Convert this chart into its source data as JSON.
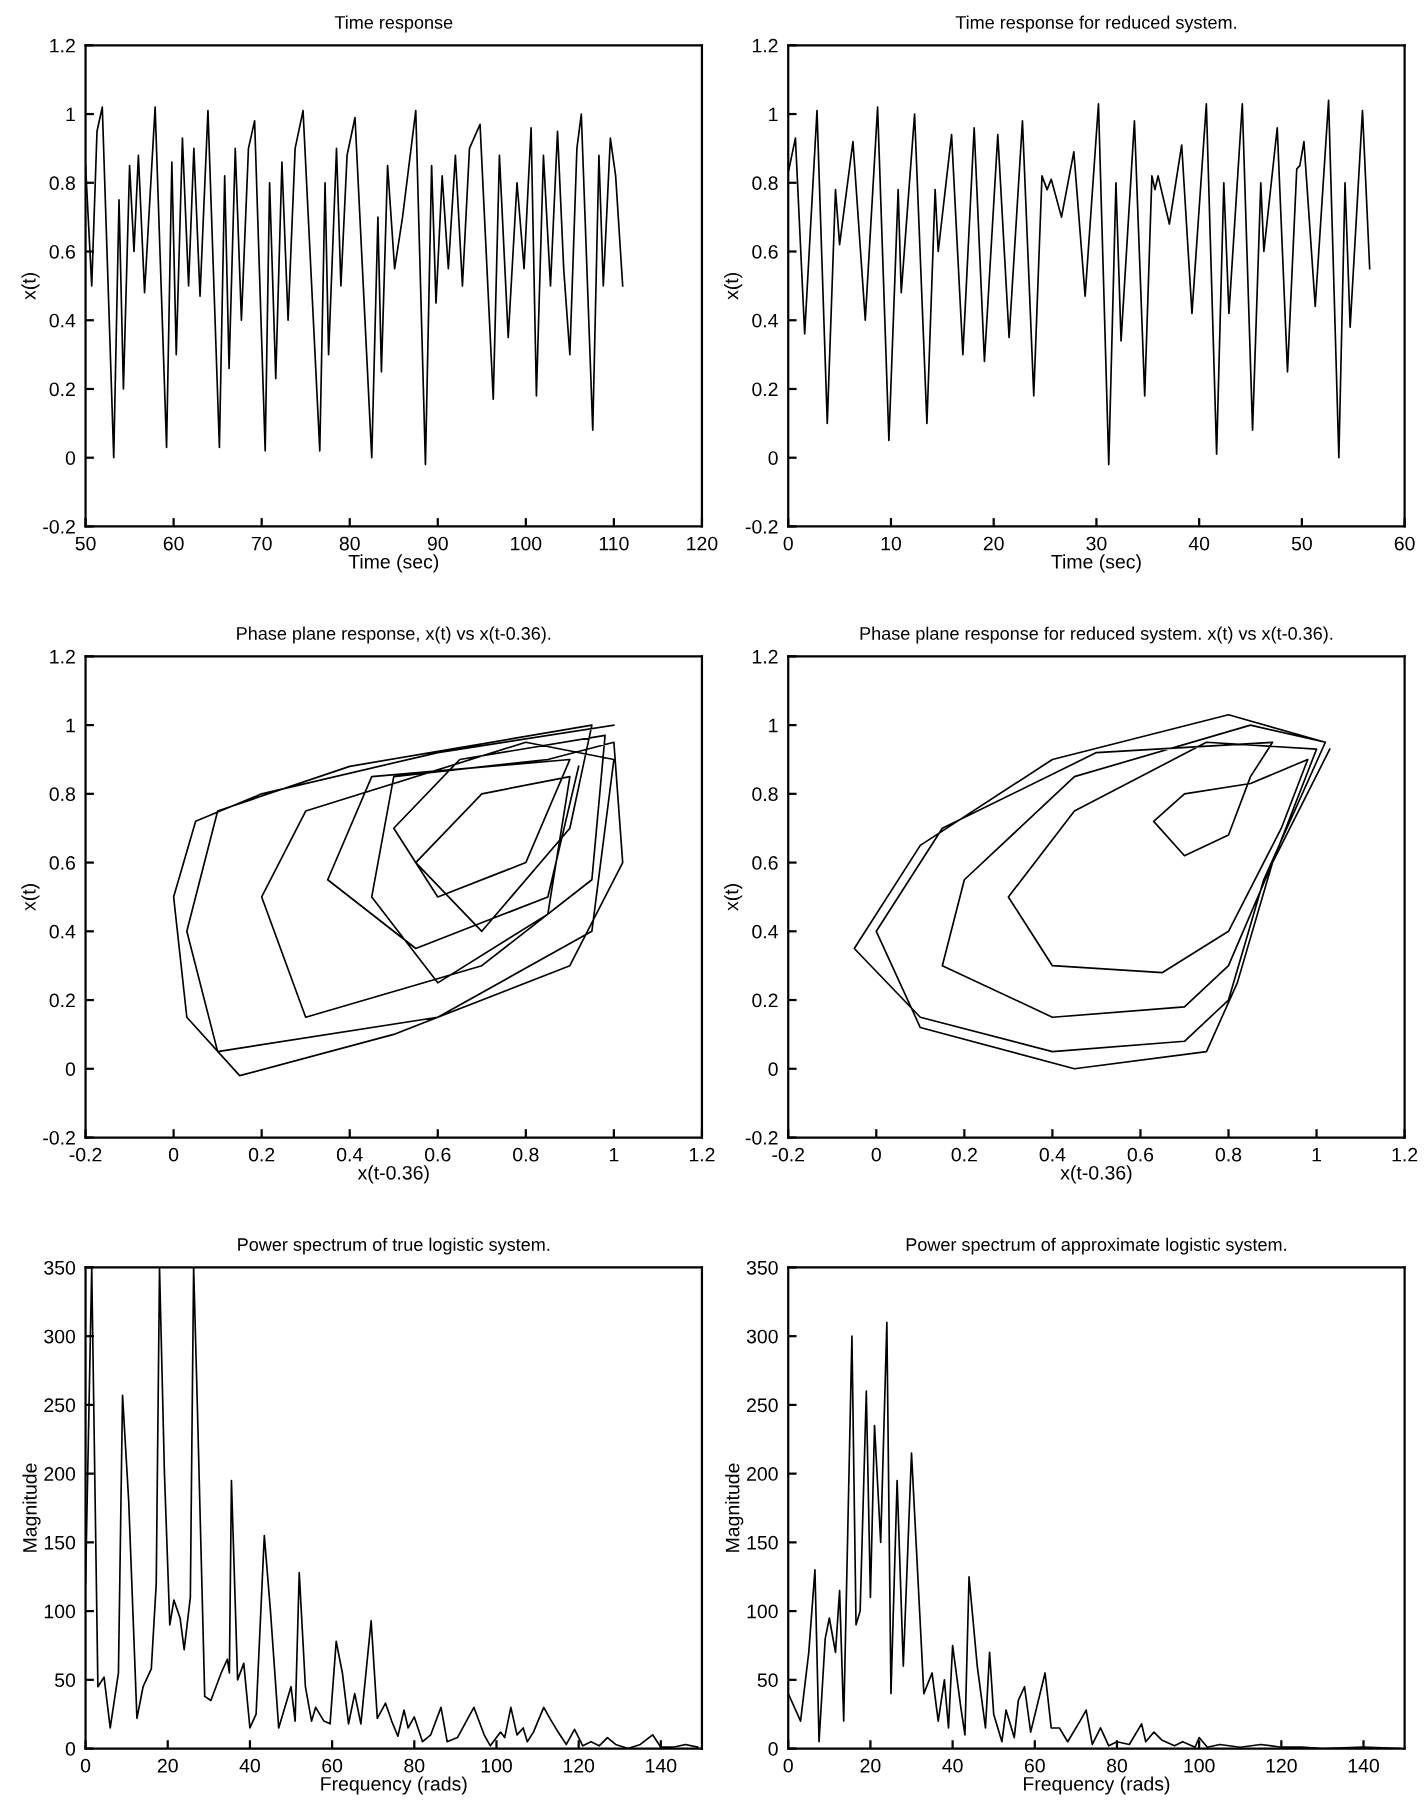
{
  "chart_data": [
    {
      "type": "line",
      "title": "Time response",
      "xlabel": "Time (sec)",
      "ylabel": "x(t)",
      "xlim": [
        50,
        120
      ],
      "xticks": [
        50,
        60,
        70,
        80,
        90,
        100,
        110,
        120
      ],
      "ylim": [
        -0.2,
        1.2
      ],
      "yticks": [
        -0.2,
        0,
        0.2,
        0.4,
        0.6,
        0.8,
        1,
        1.2
      ],
      "grid": false,
      "legend": false,
      "marker": "none",
      "line_style": "solid",
      "series": [
        {
          "color": "#000000",
          "x": [
            50,
            50.7,
            51.3,
            51.9,
            53.2,
            53.8,
            54.3,
            55,
            55.5,
            56,
            56.7,
            57.9,
            59.2,
            59.8,
            60.3,
            61,
            61.7,
            62.3,
            63,
            63.9,
            65.2,
            65.8,
            66.3,
            67,
            67.7,
            68.5,
            69.2,
            70.4,
            70.9,
            71.6,
            72.3,
            73,
            73.8,
            74.7,
            76.6,
            77.2,
            77.6,
            78.5,
            79,
            79.7,
            80.6,
            82.5,
            83.2,
            83.6,
            84.3,
            85.1,
            86,
            87.5,
            88.6,
            89.3,
            89.8,
            90.5,
            91.2,
            92,
            92.8,
            93.6,
            94.8,
            96.3,
            97,
            98,
            99,
            99.8,
            100.6,
            101.2,
            102,
            102.8,
            103.6,
            104.3,
            105,
            105.8,
            106.3,
            107.6,
            108.3,
            108.8,
            109.6,
            110.2,
            111
          ],
          "values": [
            0.85,
            0.5,
            0.95,
            1.02,
            0.0,
            0.75,
            0.2,
            0.85,
            0.6,
            0.88,
            0.48,
            1.02,
            0.03,
            0.86,
            0.3,
            0.93,
            0.5,
            0.9,
            0.47,
            1.01,
            0.03,
            0.82,
            0.26,
            0.9,
            0.4,
            0.9,
            0.98,
            0.02,
            0.8,
            0.23,
            0.86,
            0.4,
            0.9,
            1.01,
            0.02,
            0.8,
            0.3,
            0.9,
            0.5,
            0.88,
            0.99,
            0.0,
            0.7,
            0.25,
            0.85,
            0.55,
            0.7,
            1.01,
            -0.02,
            0.85,
            0.45,
            0.82,
            0.55,
            0.88,
            0.5,
            0.9,
            0.97,
            0.17,
            0.88,
            0.35,
            0.8,
            0.55,
            0.96,
            0.18,
            0.88,
            0.5,
            0.95,
            0.55,
            0.3,
            0.9,
            1.0,
            0.08,
            0.88,
            0.5,
            0.93,
            0.82,
            0.5
          ]
        }
      ]
    },
    {
      "type": "line",
      "title": "Time response for reduced system.",
      "xlabel": "Time (sec)",
      "ylabel": "x(t)",
      "xlim": [
        0,
        60
      ],
      "xticks": [
        0,
        10,
        20,
        30,
        40,
        50,
        60
      ],
      "ylim": [
        -0.2,
        1.2
      ],
      "yticks": [
        -0.2,
        0,
        0.2,
        0.4,
        0.6,
        0.8,
        1,
        1.2
      ],
      "grid": false,
      "legend": false,
      "marker": "none",
      "line_style": "solid",
      "series": [
        {
          "color": "#000000",
          "x": [
            0,
            0.7,
            1.6,
            2.8,
            3.8,
            4.6,
            5,
            6.3,
            7.5,
            8.7,
            9.8,
            10.7,
            11,
            12.3,
            13.5,
            14.3,
            14.6,
            15.9,
            17,
            18.1,
            19.1,
            20.4,
            21.5,
            22.8,
            23.9,
            24.7,
            25.2,
            25.6,
            26.6,
            27.8,
            28.9,
            30.2,
            31.2,
            31.9,
            32.4,
            33.7,
            34.7,
            35.4,
            35.7,
            36,
            37.1,
            38.3,
            39.3,
            40.7,
            41.7,
            42.4,
            42.9,
            44.2,
            45.2,
            46,
            46.3,
            47.6,
            48.6,
            49.5,
            49.8,
            50.2,
            51.3,
            52.6,
            53.6,
            54.2,
            54.7,
            55.9,
            56.6
          ],
          "values": [
            0.83,
            0.93,
            0.36,
            1.01,
            0.1,
            0.78,
            0.62,
            0.92,
            0.4,
            1.02,
            0.05,
            0.78,
            0.48,
            1.0,
            0.1,
            0.78,
            0.6,
            0.94,
            0.3,
            0.96,
            0.28,
            0.94,
            0.35,
            0.98,
            0.18,
            0.82,
            0.78,
            0.81,
            0.7,
            0.89,
            0.47,
            1.03,
            -0.02,
            0.8,
            0.34,
            0.98,
            0.18,
            0.82,
            0.78,
            0.82,
            0.68,
            0.91,
            0.42,
            1.03,
            0.01,
            0.8,
            0.42,
            1.03,
            0.08,
            0.8,
            0.6,
            0.96,
            0.25,
            0.84,
            0.85,
            0.92,
            0.44,
            1.04,
            0.0,
            0.8,
            0.38,
            1.01,
            0.55
          ]
        }
      ]
    },
    {
      "type": "line",
      "title": "Phase plane response, x(t) vs x(t-0.36).",
      "xlabel": "x(t-0.36)",
      "ylabel": "x(t)",
      "xlim": [
        -0.2,
        1.2
      ],
      "xticks": [
        -0.2,
        0,
        0.2,
        0.4,
        0.6,
        0.8,
        1,
        1.2
      ],
      "ylim": [
        -0.2,
        1.2
      ],
      "yticks": [
        -0.2,
        0,
        0.2,
        0.4,
        0.6,
        0.8,
        1,
        1.2
      ],
      "grid": false,
      "legend": false,
      "marker": "none",
      "line_style": "solid",
      "series": [
        {
          "color": "#000000",
          "x": [
            1.0,
            0.6,
            0.2,
            0.05,
            0.0,
            0.03,
            0.15,
            0.5,
            0.9,
            1.02,
            1.0,
            0.85,
            0.5,
            0.45,
            0.6,
            0.85,
            0.9,
            0.7,
            0.55,
            0.7,
            0.9,
            0.95,
            0.4,
            0.1,
            0.03,
            0.1,
            0.6,
            0.95,
            1.0,
            0.8,
            0.3,
            0.2,
            0.3,
            0.7,
            0.95,
            0.98,
            0.65,
            0.5,
            0.6,
            0.8,
            0.9,
            0.45,
            0.35,
            0.55,
            0.85,
            0.92
          ],
          "values": [
            1.0,
            0.92,
            0.8,
            0.72,
            0.5,
            0.15,
            -0.02,
            0.1,
            0.3,
            0.6,
            0.95,
            0.9,
            0.85,
            0.5,
            0.25,
            0.45,
            0.85,
            0.8,
            0.6,
            0.4,
            0.7,
            1.0,
            0.88,
            0.75,
            0.4,
            0.05,
            0.15,
            0.4,
            0.9,
            0.95,
            0.75,
            0.5,
            0.15,
            0.3,
            0.55,
            0.97,
            0.9,
            0.7,
            0.5,
            0.6,
            0.9,
            0.85,
            0.55,
            0.35,
            0.5,
            0.88
          ]
        }
      ]
    },
    {
      "type": "line",
      "title": "Phase plane response for reduced system. x(t) vs x(t-0.36).",
      "xlabel": "x(t-0.36)",
      "ylabel": "x(t)",
      "xlim": [
        -0.2,
        1.2
      ],
      "xticks": [
        -0.2,
        0,
        0.2,
        0.4,
        0.6,
        0.8,
        1,
        1.2
      ],
      "ylim": [
        -0.2,
        1.2
      ],
      "yticks": [
        -0.2,
        0,
        0.2,
        0.4,
        0.6,
        0.8,
        1,
        1.2
      ],
      "grid": false,
      "legend": false,
      "marker": "none",
      "line_style": "solid",
      "series": [
        {
          "color": "#000000",
          "x": [
            1.02,
            0.8,
            0.4,
            0.1,
            -0.05,
            0.1,
            0.4,
            0.7,
            0.8,
            0.88,
            1.02,
            0.85,
            0.45,
            0.2,
            0.15,
            0.4,
            0.7,
            0.8,
            0.9,
            1.0,
            0.75,
            0.45,
            0.3,
            0.4,
            0.65,
            0.8,
            0.92,
            0.98,
            0.85,
            0.7,
            0.63,
            0.7,
            0.8,
            0.85,
            0.9,
            0.5,
            0.15,
            0.0,
            0.1,
            0.45,
            0.75,
            0.82,
            0.9,
            1.03
          ],
          "values": [
            0.95,
            1.03,
            0.9,
            0.65,
            0.35,
            0.15,
            0.05,
            0.08,
            0.2,
            0.55,
            0.95,
            1.0,
            0.85,
            0.55,
            0.3,
            0.15,
            0.18,
            0.3,
            0.6,
            0.93,
            0.95,
            0.75,
            0.5,
            0.3,
            0.28,
            0.4,
            0.7,
            0.9,
            0.83,
            0.8,
            0.72,
            0.62,
            0.68,
            0.85,
            0.95,
            0.92,
            0.7,
            0.4,
            0.12,
            0.0,
            0.05,
            0.25,
            0.6,
            0.93
          ]
        }
      ]
    },
    {
      "type": "line",
      "title": "Power spectrum of true logistic system.",
      "xlabel": "Frequency (rads)",
      "ylabel": "Magnitude",
      "xlim": [
        0,
        150
      ],
      "xticks": [
        0,
        20,
        40,
        60,
        80,
        100,
        120,
        140
      ],
      "ylim": [
        0,
        350
      ],
      "yticks": [
        0,
        50,
        100,
        150,
        200,
        250,
        300,
        350
      ],
      "grid": false,
      "legend": false,
      "marker": "none",
      "line_style": "solid",
      "series": [
        {
          "color": "#000000",
          "x": [
            0,
            1.5,
            3,
            4.5,
            6,
            8,
            9,
            10.5,
            12.5,
            14,
            16,
            17.2,
            18,
            19.2,
            20.5,
            21.5,
            23,
            24,
            25.5,
            26.3,
            27.2,
            29,
            30.5,
            33,
            34.5,
            35,
            35.5,
            37,
            38.5,
            40,
            41.5,
            43.5,
            45,
            47,
            50,
            51,
            52,
            53.5,
            55,
            56,
            58,
            59.5,
            61,
            62.5,
            64,
            65.5,
            67,
            69.5,
            71,
            73,
            74.5,
            76,
            77.5,
            78.5,
            80,
            82,
            84,
            86.5,
            88,
            90.5,
            94.5,
            97,
            98.5,
            101,
            102,
            103.5,
            105,
            106.5,
            107.5,
            109,
            111.5,
            113,
            115,
            117,
            119,
            121,
            123,
            125,
            127,
            129,
            132,
            135,
            138,
            140,
            143,
            146,
            149
          ],
          "values": [
            120,
            350,
            45,
            52,
            15,
            55,
            257,
            180,
            22,
            45,
            58,
            120,
            350,
            200,
            90,
            108,
            95,
            72,
            110,
            350,
            250,
            38,
            35,
            55,
            65,
            55,
            195,
            50,
            62,
            15,
            25,
            155,
            100,
            15,
            45,
            20,
            128,
            45,
            20,
            30,
            20,
            18,
            78,
            55,
            18,
            40,
            18,
            93,
            22,
            33,
            20,
            9,
            28,
            15,
            23,
            5,
            10,
            30,
            5,
            8,
            30,
            10,
            2,
            12,
            8,
            30,
            10,
            15,
            5,
            12,
            30,
            22,
            12,
            3,
            14,
            2,
            5,
            2,
            8,
            3,
            0,
            3,
            10,
            1,
            1,
            3,
            1
          ]
        }
      ]
    },
    {
      "type": "line",
      "title": "Power spectrum of approximate logistic system.",
      "xlabel": "Frequency (rads)",
      "ylabel": "Magnitude",
      "xlim": [
        0,
        150
      ],
      "xticks": [
        0,
        20,
        40,
        60,
        80,
        100,
        120,
        140
      ],
      "ylim": [
        0,
        350
      ],
      "yticks": [
        0,
        50,
        100,
        150,
        200,
        250,
        300,
        350
      ],
      "grid": false,
      "legend": false,
      "marker": "none",
      "line_style": "solid",
      "series": [
        {
          "color": "#000000",
          "x": [
            0,
            3,
            5,
            6.5,
            7.5,
            9,
            10,
            11.5,
            12.5,
            13.5,
            15.5,
            16.5,
            17.5,
            19,
            20,
            21,
            22.5,
            24,
            25,
            26.5,
            28,
            30,
            33,
            35,
            36.5,
            38,
            39,
            40,
            42,
            43,
            44,
            46,
            48,
            49,
            50,
            52,
            53,
            55,
            56,
            57.5,
            59,
            62.5,
            64,
            66,
            68,
            71,
            72.5,
            74,
            76,
            78,
            80,
            83,
            86,
            87,
            89,
            91,
            94,
            96,
            99,
            100,
            102,
            105,
            110,
            115,
            120,
            125,
            130,
            140,
            149
          ],
          "values": [
            40,
            20,
            70,
            130,
            5,
            80,
            95,
            70,
            115,
            20,
            300,
            90,
            100,
            260,
            110,
            235,
            150,
            310,
            40,
            195,
            60,
            215,
            40,
            55,
            20,
            50,
            15,
            75,
            30,
            10,
            125,
            60,
            15,
            70,
            25,
            5,
            28,
            8,
            35,
            45,
            12,
            55,
            15,
            15,
            5,
            20,
            28,
            3,
            15,
            2,
            5,
            3,
            18,
            5,
            12,
            6,
            2,
            5,
            1,
            8,
            1,
            3,
            1,
            3,
            1,
            1,
            0,
            1,
            0
          ]
        }
      ]
    }
  ]
}
